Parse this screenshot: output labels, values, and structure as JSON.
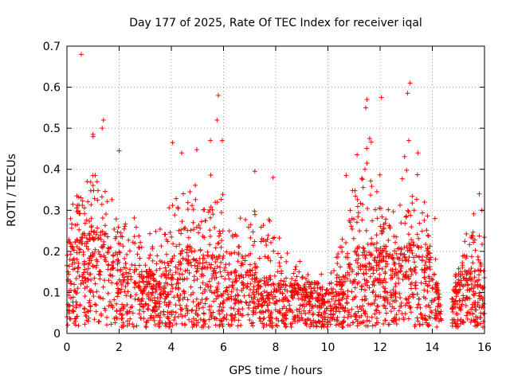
{
  "chart_data": {
    "type": "scatter",
    "title": "Day 177 of 2025, Rate Of TEC Index for receiver iqal",
    "xlabel": "GPS time / hours",
    "ylabel": "ROTI / TECUs",
    "xlim": [
      0,
      16
    ],
    "ylim": [
      0,
      0.7
    ],
    "xticks": [
      0,
      2,
      4,
      6,
      8,
      10,
      12,
      14,
      16
    ],
    "yticks": [
      0,
      0.1,
      0.2,
      0.3,
      0.4,
      0.5,
      0.6,
      0.7
    ],
    "grid": true,
    "marker": "+",
    "series": [
      {
        "name": "ROTI",
        "color": "#ff0000",
        "profile": {
          "hours": [
            0,
            0.5,
            1,
            1.5,
            2,
            2.5,
            3,
            3.5,
            4,
            4.5,
            5,
            5.5,
            6,
            6.5,
            7,
            7.5,
            8,
            8.5,
            9,
            9.5,
            10,
            10.5,
            11,
            11.5,
            12,
            12.5,
            13,
            13.5,
            14,
            14.5,
            15,
            15.5,
            16
          ],
          "typical": [
            0.15,
            0.16,
            0.18,
            0.17,
            0.12,
            0.11,
            0.1,
            0.09,
            0.12,
            0.14,
            0.14,
            0.13,
            0.12,
            0.1,
            0.1,
            0.09,
            0.08,
            0.08,
            0.08,
            0.08,
            0.07,
            0.08,
            0.14,
            0.15,
            0.15,
            0.13,
            0.15,
            0.15,
            0.12,
            0.0,
            0.1,
            0.1,
            0.1
          ],
          "envelope": [
            0.36,
            0.43,
            0.48,
            0.45,
            0.35,
            0.3,
            0.28,
            0.25,
            0.42,
            0.44,
            0.45,
            0.42,
            0.4,
            0.28,
            0.35,
            0.3,
            0.3,
            0.2,
            0.18,
            0.15,
            0.15,
            0.28,
            0.45,
            0.52,
            0.4,
            0.33,
            0.45,
            0.4,
            0.25,
            0.0,
            0.22,
            0.3,
            0.34
          ]
        },
        "gaps": [
          [
            14.35,
            14.75
          ]
        ],
        "points": [
          [
            0.55,
            0.68
          ],
          [
            1.0,
            0.485
          ],
          [
            1.4,
            0.52
          ],
          [
            1.35,
            0.5
          ],
          [
            2.0,
            0.445
          ],
          [
            4.05,
            0.465
          ],
          [
            4.4,
            0.44
          ],
          [
            5.5,
            0.47
          ],
          [
            5.8,
            0.58
          ],
          [
            5.75,
            0.52
          ],
          [
            5.95,
            0.47
          ],
          [
            7.2,
            0.395
          ],
          [
            7.9,
            0.38
          ],
          [
            10.7,
            0.385
          ],
          [
            11.5,
            0.57
          ],
          [
            11.45,
            0.55
          ],
          [
            11.6,
            0.475
          ],
          [
            11.5,
            0.415
          ],
          [
            12.05,
            0.575
          ],
          [
            13.05,
            0.585
          ],
          [
            13.15,
            0.61
          ],
          [
            13.1,
            0.47
          ],
          [
            13.45,
            0.44
          ],
          [
            13.7,
            0.32
          ],
          [
            14.1,
            0.28
          ],
          [
            15.8,
            0.34
          ],
          [
            15.9,
            0.3
          ]
        ]
      }
    ]
  }
}
